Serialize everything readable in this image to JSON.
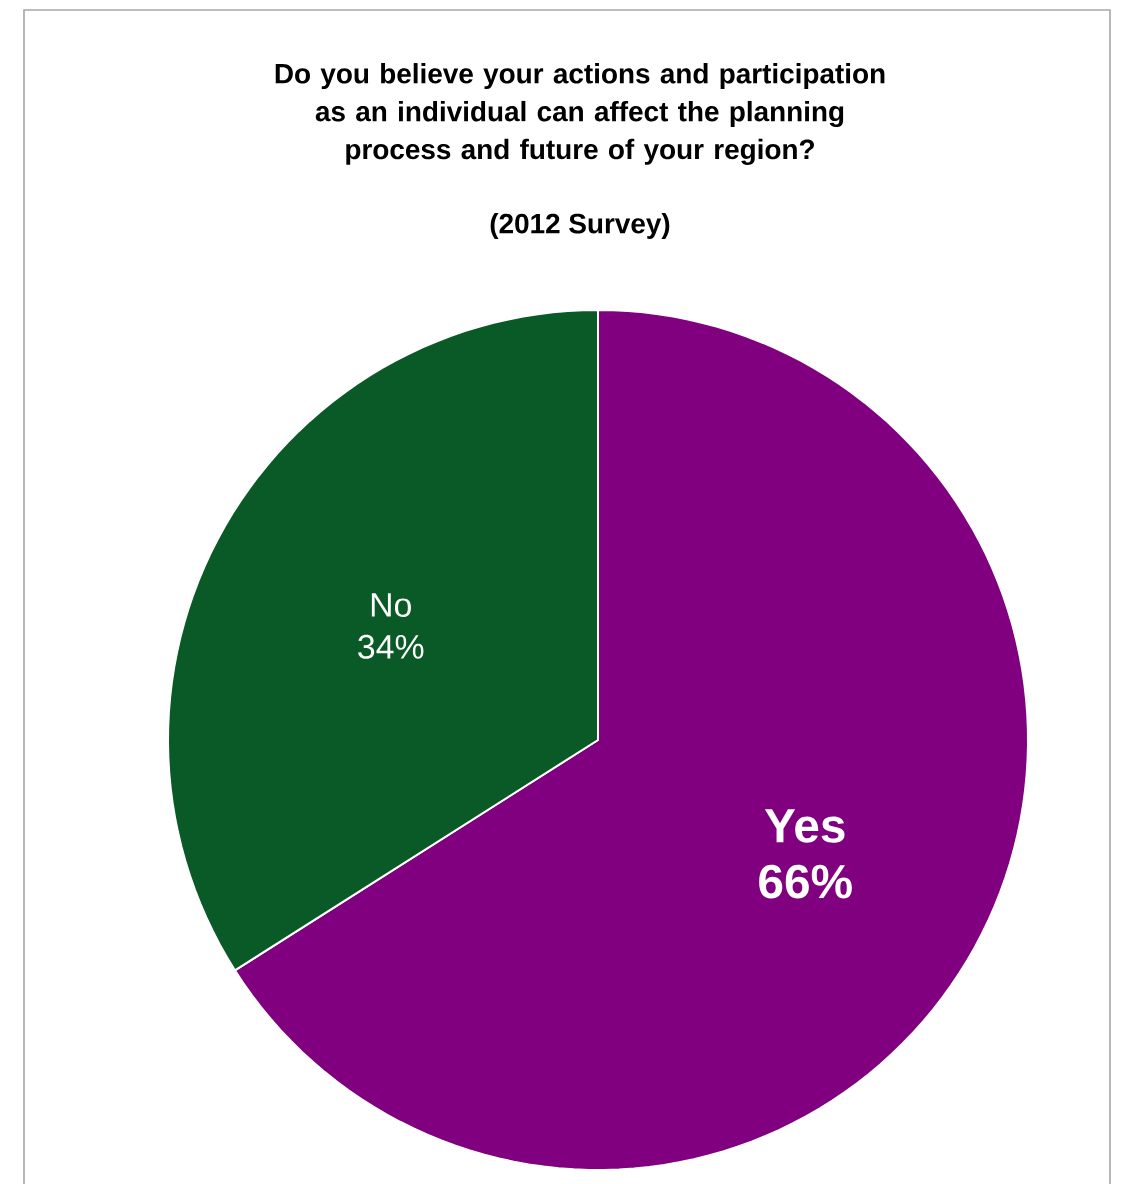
{
  "chart_data": {
    "type": "pie",
    "title": "Do you believe your actions and participation as an individual can affect the planning process and future of your region?",
    "subtitle": "(2012 Survey)",
    "categories": [
      "Yes",
      "No"
    ],
    "values": [
      66,
      34
    ],
    "value_labels": [
      "66%",
      "34%"
    ],
    "colors": [
      "#800080",
      "#0a5a28"
    ]
  }
}
